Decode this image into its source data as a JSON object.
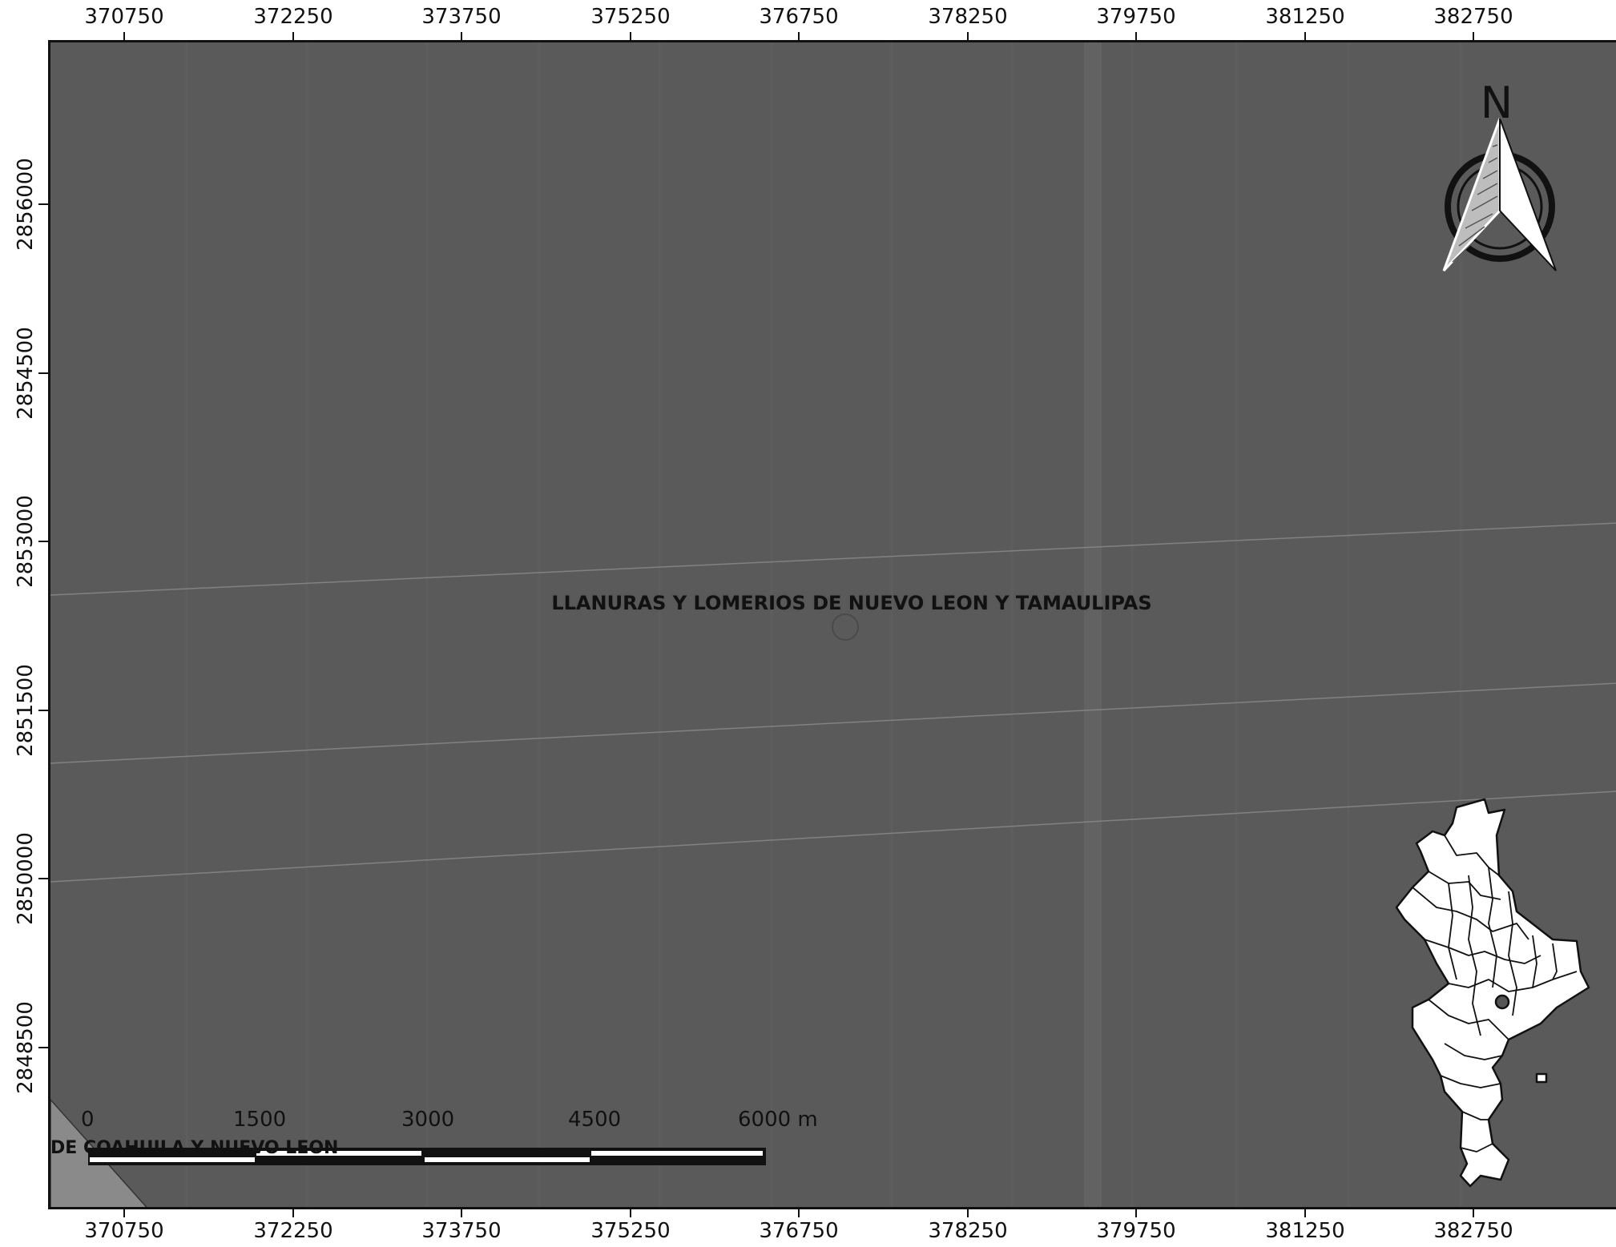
{
  "axes": {
    "x_ticks": [
      "370750",
      "372250",
      "373750",
      "375250",
      "376750",
      "378250",
      "379750",
      "381250",
      "382750"
    ],
    "y_ticks": [
      "2856000",
      "2854500",
      "2853000",
      "2851500",
      "2850000",
      "2848500"
    ]
  },
  "map": {
    "region_label": "LLANURAS Y LOMERIOS DE NUEVO LEON Y TAMAULIPAS",
    "corner_label": "DE COAHUILA Y NUEVO LEON",
    "background_color": "#5a5a5a",
    "corner_region_color": "#8a8a8a"
  },
  "scale_bar": {
    "labels": [
      "0",
      "1500",
      "3000",
      "4500",
      "6000 m"
    ]
  },
  "north_arrow": {
    "letter": "N",
    "icon": "north-arrow-icon"
  },
  "inset_map": {
    "icon": "nuevo-leon-state-outline",
    "fill": "#ffffff",
    "stroke": "#111111"
  }
}
